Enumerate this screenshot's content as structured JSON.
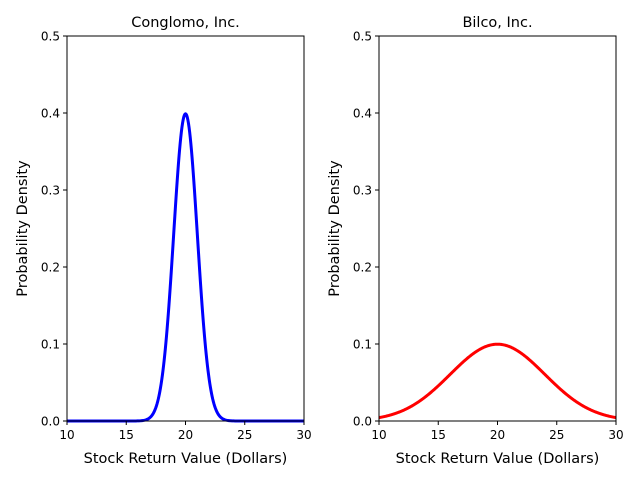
{
  "chart_data": [
    {
      "type": "line",
      "title": "Conglomo, Inc.",
      "xlabel": "Stock Return Value (Dollars)",
      "ylabel": "Probability Density",
      "xlim": [
        10,
        30
      ],
      "ylim": [
        0,
        0.5
      ],
      "xticks": [
        10,
        15,
        20,
        25,
        30
      ],
      "yticks": [
        0.0,
        0.1,
        0.2,
        0.3,
        0.4,
        0.5
      ],
      "xtick_labels": [
        "10",
        "15",
        "20",
        "25",
        "30"
      ],
      "ytick_labels": [
        "0.0",
        "0.1",
        "0.2",
        "0.3",
        "0.4",
        "0.5"
      ],
      "series": [
        {
          "name": "Conglomo, Inc.",
          "color": "#0000ff",
          "distribution": "normal",
          "mean": 20,
          "std": 1,
          "peak": 0.4,
          "x": [
            10,
            15,
            16,
            17,
            18,
            18.5,
            19,
            19.5,
            20,
            20.5,
            21,
            21.5,
            22,
            23,
            24,
            25,
            30
          ],
          "y": [
            0.0,
            1.5e-06,
            0.000134,
            0.0044,
            0.054,
            0.1295,
            0.242,
            0.352,
            0.399,
            0.352,
            0.242,
            0.1295,
            0.054,
            0.0044,
            0.000134,
            1.5e-06,
            0.0
          ]
        }
      ]
    },
    {
      "type": "line",
      "title": "Bilco, Inc.",
      "xlabel": "Stock Return Value (Dollars)",
      "ylabel": "Probability Density",
      "xlim": [
        10,
        30
      ],
      "ylim": [
        0,
        0.5
      ],
      "xticks": [
        10,
        15,
        20,
        25,
        30
      ],
      "yticks": [
        0.0,
        0.1,
        0.2,
        0.3,
        0.4,
        0.5
      ],
      "xtick_labels": [
        "10",
        "15",
        "20",
        "25",
        "30"
      ],
      "ytick_labels": [
        "0.0",
        "0.1",
        "0.2",
        "0.3",
        "0.4",
        "0.5"
      ],
      "series": [
        {
          "name": "Bilco, Inc.",
          "color": "#ff0000",
          "distribution": "normal",
          "mean": 20,
          "std": 4,
          "peak": 0.1,
          "x": [
            10,
            12,
            14,
            15,
            16,
            18,
            20,
            22,
            24,
            25,
            26,
            28,
            30
          ],
          "y": [
            0.0044,
            0.0135,
            0.0324,
            0.0457,
            0.0605,
            0.088,
            0.0997,
            0.088,
            0.0605,
            0.0457,
            0.0324,
            0.0135,
            0.0044
          ]
        }
      ]
    }
  ]
}
